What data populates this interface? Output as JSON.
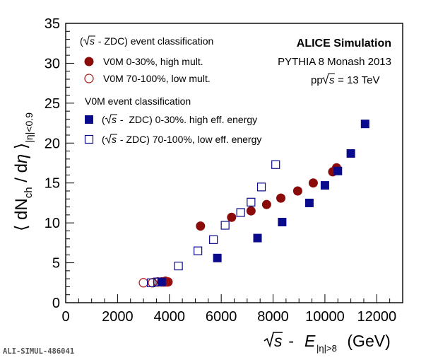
{
  "chart_data": {
    "type": "scatter",
    "xlabel": {
      "pre": "s",
      "mid": " - ",
      "E": "E",
      "sub": "|η|>8",
      "unit": " (GeV)"
    },
    "ylabel": {
      "open": "⟨",
      "dN": "dN",
      "ch": "ch",
      "slash": " / d",
      "eta": "η",
      "close": "⟩",
      "sub": "|η|<0.9"
    },
    "xlim": [
      0,
      13000
    ],
    "ylim": [
      0,
      35
    ],
    "xticks": [
      "0",
      "2000",
      "4000",
      "6000",
      "8000",
      "10000",
      "12000"
    ],
    "xtick_values": [
      0,
      2000,
      4000,
      6000,
      8000,
      10000,
      12000
    ],
    "yticks": [
      "0",
      "5",
      "10",
      "15",
      "20",
      "25",
      "30",
      "35"
    ],
    "ytick_values": [
      0,
      5,
      10,
      15,
      20,
      25,
      30,
      35
    ],
    "grid": false,
    "annotations": {
      "title": "ALICE Simulation",
      "generator": "PYTHIA 8 Monash 2013",
      "energy_pre": "pp ",
      "energy_s": "s",
      "energy_post": " = 13 TeV",
      "watermark": "ALI-SIMUL-486041"
    },
    "legend_headers": {
      "group1": {
        "pre": "(",
        "s": "s",
        "post": " - ZDC) event classification"
      },
      "group2": "V0M event classification"
    },
    "series": [
      {
        "name": "V0M 0-30%, high mult.",
        "marker": "filled-circle",
        "color": "#8b0a0a",
        "x": [
          3750,
          3850,
          3950,
          5200,
          6400,
          7150,
          7750,
          8300,
          8950,
          9550,
          10300,
          10450
        ],
        "y": [
          2.6,
          2.7,
          2.6,
          9.6,
          10.7,
          11.5,
          12.3,
          13.1,
          14.0,
          15.0,
          16.4,
          16.9
        ]
      },
      {
        "name": "V0M 70-100%, low mult.",
        "marker": "open-circle",
        "color": "#b01010",
        "x": [
          3000,
          3350,
          3550,
          3700,
          3800,
          3900
        ],
        "y": [
          2.5,
          2.5,
          2.6,
          2.6,
          2.6,
          2.6
        ]
      },
      {
        "name_parts": {
          "pre": "(",
          "s": "s",
          "post": " -  ZDC) 0-30%. high eff. energy"
        },
        "marker": "filled-square",
        "color": "#0a0a8c",
        "x": [
          3700,
          5850,
          7400,
          8350,
          9400,
          10000,
          10500,
          11000,
          11550
        ],
        "y": [
          2.6,
          5.6,
          8.1,
          10.1,
          12.5,
          14.7,
          16.5,
          18.7,
          22.4
        ]
      },
      {
        "name_parts": {
          "pre": "(",
          "s": "s",
          "post": " - ZDC) 70-100%, low eff. energy"
        },
        "marker": "open-square",
        "color": "#0a0a8c",
        "x": [
          3300,
          3550,
          4350,
          5100,
          5700,
          6150,
          6750,
          7150,
          7550,
          8100
        ],
        "y": [
          2.5,
          2.6,
          4.6,
          6.5,
          7.9,
          9.7,
          11.3,
          12.6,
          14.5,
          17.3
        ]
      }
    ]
  }
}
